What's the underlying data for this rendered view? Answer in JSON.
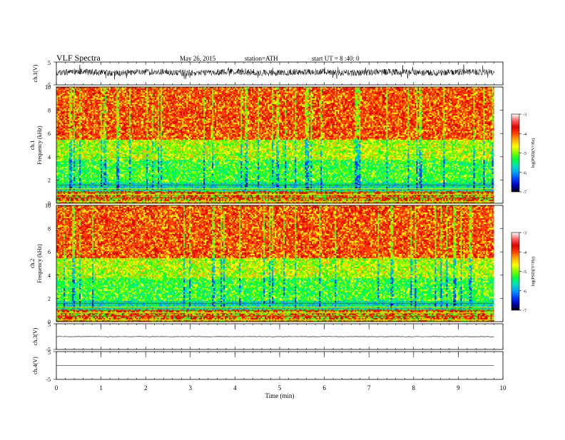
{
  "header": {
    "title": "VLF  Spectra",
    "date": "May 26, 2015",
    "station": "station=ATH",
    "start": "start  UT  =   8 :40: 0"
  },
  "colors": {
    "spectrogram_scale": [
      "#000000",
      "#0000b4",
      "#0040ff",
      "#00a0ff",
      "#00e0c0",
      "#00ff40",
      "#80ff00",
      "#ffff00",
      "#ffb000",
      "#ff4000",
      "#e00000",
      "#ff6060",
      "#ffffff"
    ],
    "trace": "#000000",
    "axes": "#000000"
  },
  "chart_data": [
    {
      "id": "ch1_waveform",
      "type": "line",
      "ylabel": "ch.1(V)",
      "yticks": [
        "5",
        "-5"
      ],
      "ylim": [
        -5,
        5
      ],
      "xlim": [
        0,
        10
      ],
      "description_level": "broadband noise, about ±1.5 V"
    },
    {
      "id": "ch1_spectrogram",
      "type": "heatmap",
      "ylabel_top": "ch.1",
      "ylabel": "Frequency (kHz)",
      "yticks": [
        "0",
        "2",
        "4",
        "6",
        "8",
        "10"
      ],
      "ylim": [
        0,
        10
      ],
      "xlim": [
        0,
        10
      ],
      "colorbar": {
        "label": "log(PSD)(V²/Hz)",
        "ticks": [
          "-3",
          "-4",
          "-5",
          "-6",
          "-7"
        ],
        "range": [
          -7,
          -3
        ]
      }
    },
    {
      "id": "ch2_spectrogram",
      "type": "heatmap",
      "ylabel_top": "ch.2",
      "ylabel": "Frequency (kHz)",
      "yticks": [
        "0",
        "2",
        "4",
        "6",
        "8",
        "10"
      ],
      "ylim": [
        0,
        10
      ],
      "xlim": [
        0,
        10
      ],
      "colorbar": {
        "label": "log(PSD)(V²/Hz)",
        "ticks": [
          "-3",
          "-4",
          "-5",
          "-6",
          "-7"
        ],
        "range": [
          -7,
          -3
        ]
      }
    },
    {
      "id": "ch3_waveform",
      "type": "line",
      "ylabel": "ch.3(V)",
      "yticks": [
        "5",
        "-5"
      ],
      "ylim": [
        -5,
        5
      ],
      "xlim": [
        0,
        10
      ]
    },
    {
      "id": "ch4_waveform",
      "type": "line",
      "ylabel": "ch.4(V)",
      "yticks": [
        "5",
        "-5"
      ],
      "ylim": [
        -5,
        5
      ],
      "xlim": [
        0,
        10
      ]
    }
  ],
  "xaxis": {
    "label": "Time  (min)",
    "ticks": [
      "0",
      "1",
      "2",
      "3",
      "4",
      "5",
      "6",
      "7",
      "8",
      "9",
      "10"
    ],
    "range": [
      0,
      10
    ],
    "data_end": 9.8
  }
}
